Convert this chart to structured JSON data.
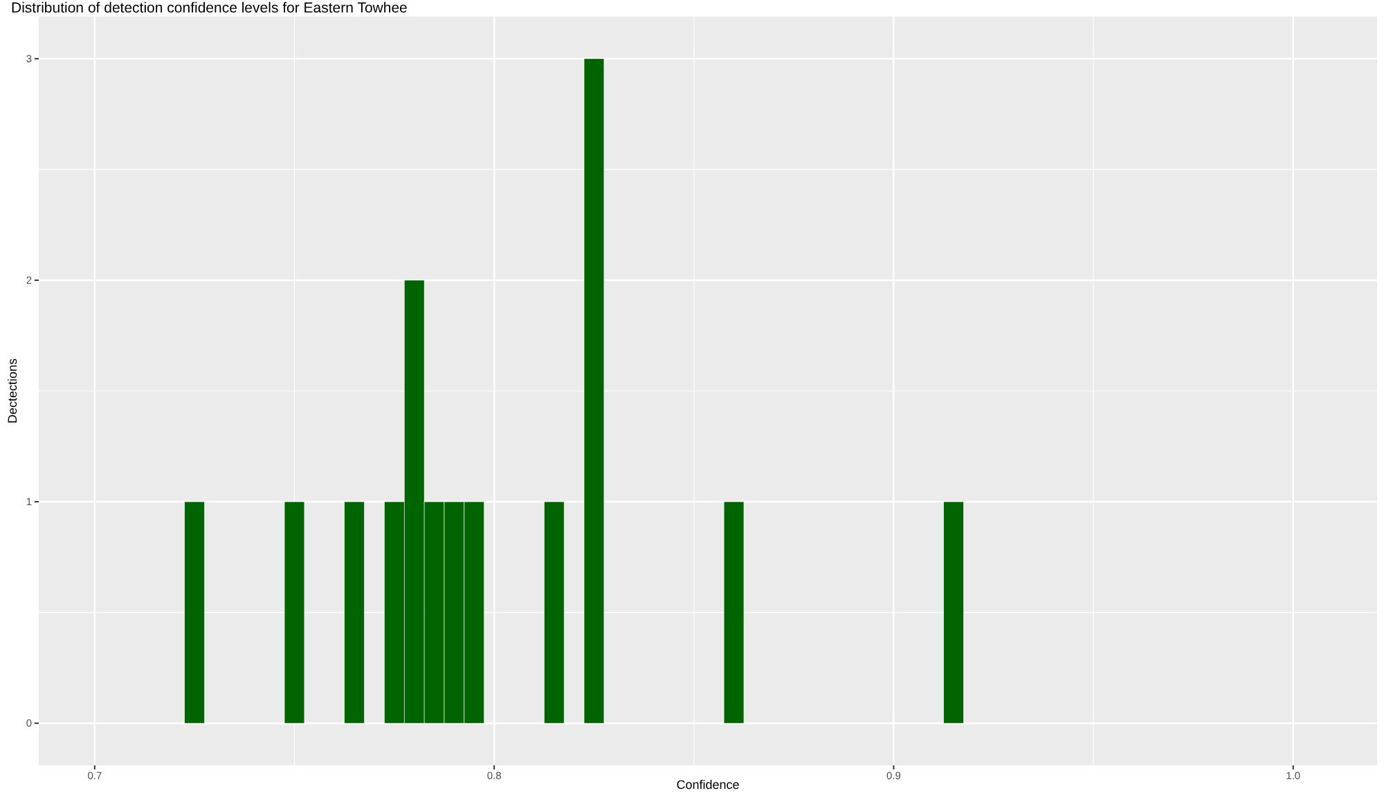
{
  "chart_data": {
    "type": "histogram",
    "title": "Distribution of detection confidence levels for Eastern Towhee",
    "xlabel": "Confidence",
    "ylabel": "Dectections",
    "bins": [
      0.7225,
      0.7275,
      0.7325,
      0.7375,
      0.7425,
      0.7475,
      0.7525,
      0.7575,
      0.7625,
      0.7675,
      0.7725,
      0.7775,
      0.7825,
      0.7875,
      0.7925,
      0.7975,
      0.8025,
      0.8075,
      0.8125,
      0.8175,
      0.8225,
      0.8275,
      0.8325,
      0.8375,
      0.8425,
      0.8475,
      0.8525,
      0.8575,
      0.8625,
      0.8675,
      0.8725,
      0.8775,
      0.8825,
      0.8875,
      0.8925,
      0.8975,
      0.9025,
      0.9075,
      0.9125,
      0.9175
    ],
    "values": [
      1,
      0,
      0,
      0,
      0,
      1,
      0,
      0,
      1,
      0,
      1,
      2,
      1,
      1,
      1,
      0,
      0,
      0,
      1,
      0,
      3,
      0,
      0,
      0,
      0,
      0,
      0,
      1,
      0,
      0,
      0,
      0,
      0,
      0,
      0,
      0,
      0,
      0,
      1
    ],
    "color": "#006400",
    "xlim": [
      0.686,
      1.021
    ],
    "xticks": [
      0.7,
      {
        "value": 0.75,
        "label": null
      },
      0.8,
      {
        "value": 0.85,
        "label": null
      },
      0.9,
      {
        "value": 0.95,
        "label": null
      },
      {
        "value": 1.0,
        "label": "1.0"
      }
    ],
    "ylim": [
      -0.19,
      3.19
    ],
    "yticks": [
      0,
      {
        "value": 0.5,
        "label": null
      },
      1,
      {
        "value": 1.5,
        "label": null
      },
      2,
      {
        "value": 2.5,
        "label": null
      },
      3
    ],
    "grid": true
  }
}
